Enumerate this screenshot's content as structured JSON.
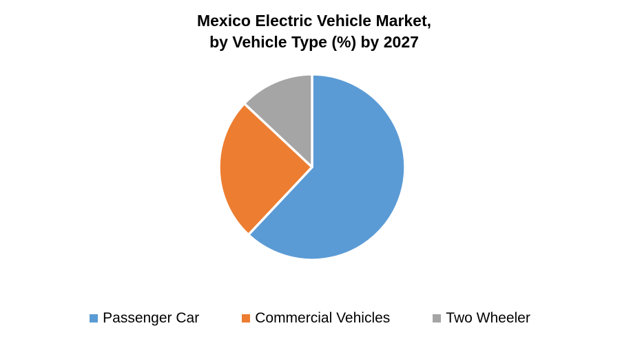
{
  "title": {
    "line1": "Mexico Electric Vehicle Market,",
    "line2": "by Vehicle Type (%) by 2027"
  },
  "chart_data": {
    "type": "pie",
    "title": "Mexico Electric Vehicle Market, by Vehicle Type (%) by 2027",
    "categories": [
      "Passenger Car",
      "Commercial Vehicles",
      "Two Wheeler"
    ],
    "values": [
      62,
      25,
      13
    ],
    "unit": "%",
    "colors": [
      "#5B9BD5",
      "#ED7D31",
      "#A5A5A5"
    ],
    "start_angle_deg": 0,
    "direction": "clockwise",
    "slice_border_color": "#FFFFFF",
    "slice_border_width": 3.5,
    "legend_position": "bottom",
    "data_labels_shown": false,
    "background": "#FFFFFF"
  }
}
